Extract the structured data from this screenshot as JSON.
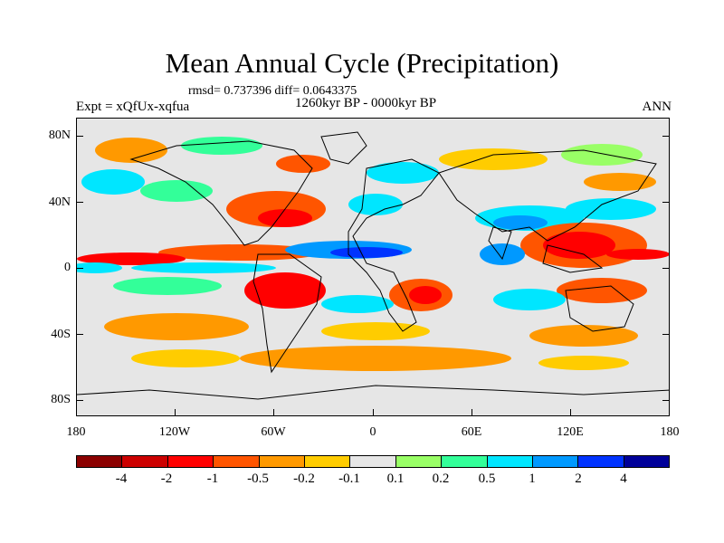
{
  "header": {
    "title": "Mean Annual Cycle (Precipitation)",
    "stats": "rmsd= 0.737396 diff= 0.0643375",
    "period": "1260kyr BP - 0000kyr BP",
    "experiment": "Expt = xQfUx-xqfua",
    "season": "ANN"
  },
  "axes": {
    "lat_labels": [
      "80N",
      "40N",
      "0",
      "40S",
      "80S"
    ],
    "lon_labels": [
      "180",
      "120W",
      "60W",
      "0",
      "60E",
      "120E",
      "180"
    ]
  },
  "colorbar": {
    "labels": [
      "-4",
      "-2",
      "-1",
      "-0.5",
      "-0.2",
      "-0.1",
      "0.1",
      "0.2",
      "0.5",
      "1",
      "2",
      "4"
    ],
    "colors": [
      "#8b0000",
      "#cc0000",
      "#ff0000",
      "#ff5500",
      "#ff9900",
      "#ffcc00",
      "#e6e6e6",
      "#99ff66",
      "#33ff99",
      "#00e6ff",
      "#0099ff",
      "#0033ff",
      "#000099"
    ]
  },
  "colors": {
    "background": "#e6e6e6",
    "coast": "#000000"
  }
}
